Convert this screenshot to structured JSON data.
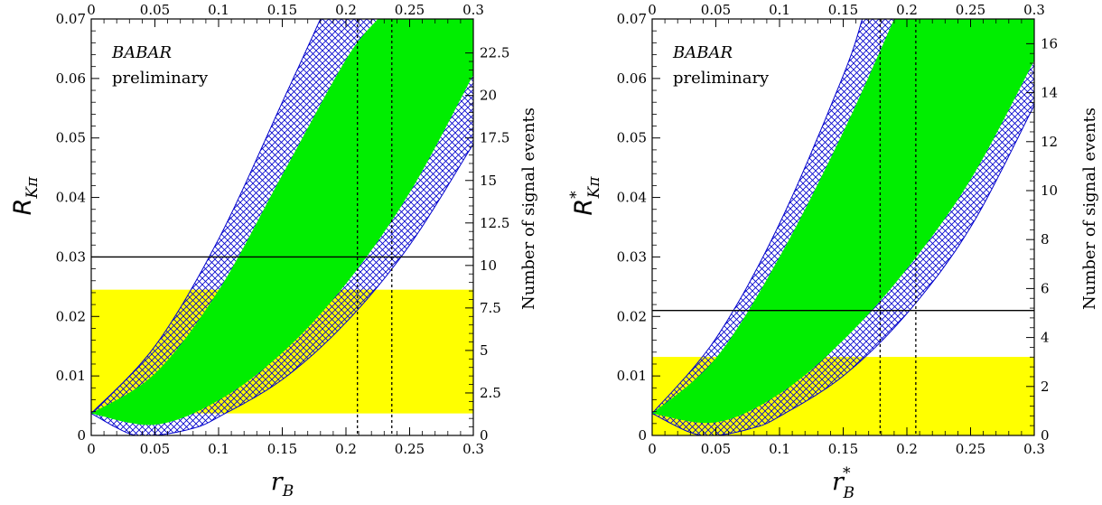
{
  "chart_data": [
    {
      "type": "area",
      "xlabel": {
        "base": "r",
        "sub": "B",
        "sup": ""
      },
      "ylabel": {
        "base": "R",
        "sub": "Kπ",
        "sup": ""
      },
      "right_ylabel": "Number of signal events",
      "annotation": {
        "italic": "BABAR",
        "text": "preliminary"
      },
      "xlim": [
        0,
        0.3
      ],
      "ylim": [
        0,
        0.07
      ],
      "x_ticks": [
        "0",
        "0.05",
        "0.1",
        "0.15",
        "0.2",
        "0.25",
        "0.3"
      ],
      "y_ticks": [
        "0",
        "0.01",
        "0.02",
        "0.03",
        "0.04",
        "0.05",
        "0.06",
        "0.07"
      ],
      "right_ticks": [
        "0",
        "2.5",
        "5",
        "7.5",
        "10",
        "12.5",
        "15",
        "17.5",
        "20",
        "22.5"
      ],
      "right_tick_values": [
        0,
        2.5,
        5,
        7.5,
        10,
        12.5,
        15,
        17.5,
        20,
        22.5
      ],
      "right_scale_factor": 350,
      "yellow_band": [
        0.0037,
        0.0245
      ],
      "horizontal_line": 0.03,
      "vertical_lines": [
        0.209,
        0.236
      ],
      "green_band": {
        "upper": [
          [
            0,
            0.0037
          ],
          [
            0.05,
            0.0104
          ],
          [
            0.1,
            0.0244
          ],
          [
            0.15,
            0.0438
          ],
          [
            0.2,
            0.0632
          ],
          [
            0.225,
            0.07
          ]
        ],
        "lower": [
          [
            0,
            0.0037
          ],
          [
            0.05,
            0.0018
          ],
          [
            0.1,
            0.0059
          ],
          [
            0.15,
            0.0139
          ],
          [
            0.2,
            0.0255
          ],
          [
            0.25,
            0.0408
          ],
          [
            0.3,
            0.0606
          ]
        ]
      },
      "hatched_band": {
        "upper": [
          [
            0,
            0.0037
          ],
          [
            0.05,
            0.015
          ],
          [
            0.1,
            0.033
          ],
          [
            0.15,
            0.056
          ],
          [
            0.18,
            0.07
          ]
        ],
        "lower": [
          [
            0,
            0.0037
          ],
          [
            0.03,
            0.0003
          ],
          [
            0.05,
            0.0
          ],
          [
            0.08,
            0.0012
          ],
          [
            0.1,
            0.0031
          ],
          [
            0.15,
            0.0094
          ],
          [
            0.2,
            0.019
          ],
          [
            0.25,
            0.032
          ],
          [
            0.3,
            0.049
          ]
        ]
      },
      "colors": {
        "green": "#00ee00",
        "yellow": "#ffff00",
        "hatch": "#0000cc"
      }
    },
    {
      "type": "area",
      "xlabel": {
        "base": "r",
        "sub": "B",
        "sup": "*"
      },
      "ylabel": {
        "base": "R",
        "sub": "Kπ",
        "sup": "*"
      },
      "right_ylabel": "Number of signal events",
      "annotation": {
        "italic": "BABAR",
        "text": "preliminary"
      },
      "xlim": [
        0,
        0.3
      ],
      "ylim": [
        0,
        0.07
      ],
      "x_ticks": [
        "0",
        "0.05",
        "0.1",
        "0.15",
        "0.2",
        "0.25",
        "0.3"
      ],
      "y_ticks": [
        "0",
        "0.01",
        "0.02",
        "0.03",
        "0.04",
        "0.05",
        "0.06",
        "0.07"
      ],
      "right_ticks": [
        "0",
        "2",
        "4",
        "6",
        "8",
        "10",
        "12",
        "14",
        "16"
      ],
      "right_tick_values": [
        0,
        2,
        4,
        6,
        8,
        10,
        12,
        14,
        16
      ],
      "right_scale_factor": 243,
      "yellow_band": [
        0,
        0.0132
      ],
      "horizontal_line": 0.021,
      "vertical_lines": [
        0.179,
        0.207
      ],
      "green_band": {
        "upper": [
          [
            0,
            0.0037
          ],
          [
            0.05,
            0.013
          ],
          [
            0.1,
            0.03
          ],
          [
            0.15,
            0.051
          ],
          [
            0.19,
            0.07
          ]
        ],
        "lower": [
          [
            0,
            0.0037
          ],
          [
            0.05,
            0.0022
          ],
          [
            0.1,
            0.007
          ],
          [
            0.15,
            0.016
          ],
          [
            0.2,
            0.028
          ],
          [
            0.25,
            0.043
          ],
          [
            0.3,
            0.063
          ]
        ]
      },
      "hatched_band": {
        "upper": [
          [
            0,
            0.0037
          ],
          [
            0.05,
            0.0163
          ],
          [
            0.1,
            0.0356
          ],
          [
            0.15,
            0.0605
          ],
          [
            0.165,
            0.07
          ]
        ],
        "lower": [
          [
            0,
            0.0037
          ],
          [
            0.03,
            0.0005
          ],
          [
            0.05,
            0.0
          ],
          [
            0.08,
            0.0013
          ],
          [
            0.1,
            0.0032
          ],
          [
            0.15,
            0.01
          ],
          [
            0.2,
            0.0205
          ],
          [
            0.25,
            0.035
          ],
          [
            0.3,
            0.0555
          ]
        ]
      },
      "colors": {
        "green": "#00ee00",
        "yellow": "#ffff00",
        "hatch": "#0000cc"
      }
    }
  ]
}
